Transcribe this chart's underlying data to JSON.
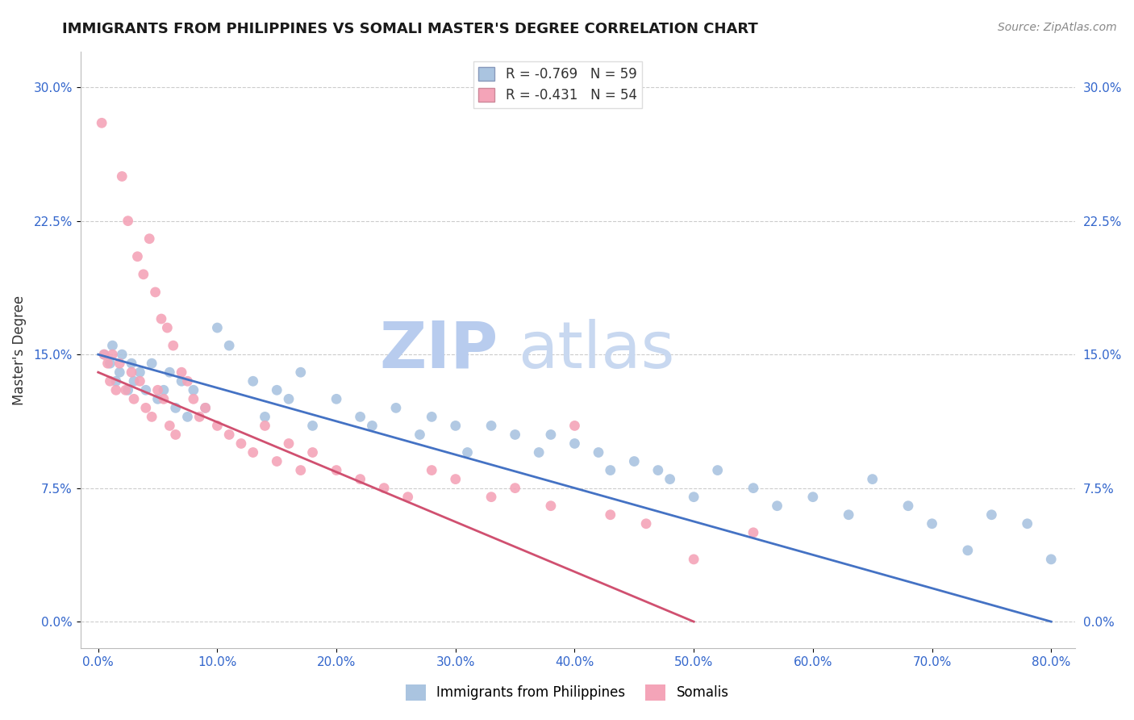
{
  "title": "IMMIGRANTS FROM PHILIPPINES VS SOMALI MASTER'S DEGREE CORRELATION CHART",
  "source": "Source: ZipAtlas.com",
  "ylabel": "Master's Degree",
  "color_blue": "#aac4e0",
  "color_pink": "#f4a4b8",
  "line_blue": "#4472c4",
  "line_pink": "#d05070",
  "xtick_values": [
    0.0,
    10.0,
    20.0,
    30.0,
    40.0,
    50.0,
    60.0,
    70.0,
    80.0
  ],
  "ytick_values": [
    0.0,
    7.5,
    15.0,
    22.5,
    30.0
  ],
  "xlim": [
    -1.5,
    82
  ],
  "ylim": [
    -1.5,
    32
  ],
  "legend_r1": "R = -0.769   N = 59",
  "legend_r2": "R = -0.431   N = 54",
  "tick_color": "#3366cc",
  "tick_fontsize": 11,
  "watermark_zip": "ZIP",
  "watermark_atlas": "atlas",
  "phil_x": [
    0.5,
    1.0,
    1.2,
    1.5,
    1.8,
    2.0,
    2.5,
    2.8,
    3.0,
    3.5,
    4.0,
    4.5,
    5.0,
    5.5,
    6.0,
    6.5,
    7.0,
    7.5,
    8.0,
    9.0,
    10.0,
    11.0,
    13.0,
    14.0,
    15.0,
    16.0,
    17.0,
    18.0,
    20.0,
    22.0,
    23.0,
    25.0,
    27.0,
    28.0,
    30.0,
    31.0,
    33.0,
    35.0,
    37.0,
    38.0,
    40.0,
    42.0,
    43.0,
    45.0,
    47.0,
    48.0,
    50.0,
    52.0,
    55.0,
    57.0,
    60.0,
    63.0,
    65.0,
    68.0,
    70.0,
    73.0,
    75.0,
    78.0,
    80.0
  ],
  "phil_y": [
    15.0,
    14.5,
    15.5,
    13.5,
    14.0,
    15.0,
    13.0,
    14.5,
    13.5,
    14.0,
    13.0,
    14.5,
    12.5,
    13.0,
    14.0,
    12.0,
    13.5,
    11.5,
    13.0,
    12.0,
    16.5,
    15.5,
    13.5,
    11.5,
    13.0,
    12.5,
    14.0,
    11.0,
    12.5,
    11.5,
    11.0,
    12.0,
    10.5,
    11.5,
    11.0,
    9.5,
    11.0,
    10.5,
    9.5,
    10.5,
    10.0,
    9.5,
    8.5,
    9.0,
    8.5,
    8.0,
    7.0,
    8.5,
    7.5,
    6.5,
    7.0,
    6.0,
    8.0,
    6.5,
    5.5,
    4.0,
    6.0,
    5.5,
    3.5
  ],
  "som_x": [
    0.3,
    0.5,
    0.8,
    1.0,
    1.2,
    1.5,
    1.8,
    2.0,
    2.3,
    2.5,
    2.8,
    3.0,
    3.3,
    3.5,
    3.8,
    4.0,
    4.3,
    4.5,
    4.8,
    5.0,
    5.3,
    5.5,
    5.8,
    6.0,
    6.3,
    6.5,
    7.0,
    7.5,
    8.0,
    8.5,
    9.0,
    10.0,
    11.0,
    12.0,
    13.0,
    14.0,
    15.0,
    16.0,
    17.0,
    18.0,
    20.0,
    22.0,
    24.0,
    26.0,
    28.0,
    30.0,
    33.0,
    35.0,
    38.0,
    40.0,
    43.0,
    46.0,
    50.0,
    55.0
  ],
  "som_y": [
    28.0,
    15.0,
    14.5,
    13.5,
    15.0,
    13.0,
    14.5,
    25.0,
    13.0,
    22.5,
    14.0,
    12.5,
    20.5,
    13.5,
    19.5,
    12.0,
    21.5,
    11.5,
    18.5,
    13.0,
    17.0,
    12.5,
    16.5,
    11.0,
    15.5,
    10.5,
    14.0,
    13.5,
    12.5,
    11.5,
    12.0,
    11.0,
    10.5,
    10.0,
    9.5,
    11.0,
    9.0,
    10.0,
    8.5,
    9.5,
    8.5,
    8.0,
    7.5,
    7.0,
    8.5,
    8.0,
    7.0,
    7.5,
    6.5,
    11.0,
    6.0,
    5.5,
    3.5,
    5.0
  ],
  "bottom_legend": [
    "Immigrants from Philippines",
    "Somalis"
  ]
}
